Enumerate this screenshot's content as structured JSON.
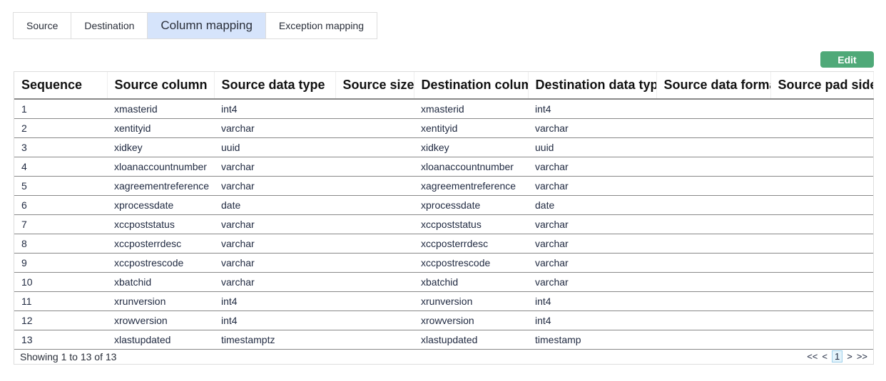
{
  "tabs": [
    "Source",
    "Destination",
    "Column mapping",
    "Exception mapping"
  ],
  "active_tab": "Column mapping",
  "edit_label": "Edit",
  "columns": [
    "Sequence",
    "Source column",
    "Source data type",
    "Source size",
    "Destination column",
    "Destination data type",
    "Source data format",
    "Source pad side"
  ],
  "rows": [
    [
      "1",
      "xmasterid",
      "int4",
      "",
      "xmasterid",
      "int4",
      "",
      ""
    ],
    [
      "2",
      "xentityid",
      "varchar",
      "",
      "xentityid",
      "varchar",
      "",
      ""
    ],
    [
      "3",
      "xidkey",
      "uuid",
      "",
      "xidkey",
      "uuid",
      "",
      ""
    ],
    [
      "4",
      "xloanaccountnumber",
      "varchar",
      "",
      "xloanaccountnumber",
      "varchar",
      "",
      ""
    ],
    [
      "5",
      "xagreementreference",
      "varchar",
      "",
      "xagreementreference",
      "varchar",
      "",
      ""
    ],
    [
      "6",
      "xprocessdate",
      "date",
      "",
      "xprocessdate",
      "date",
      "",
      ""
    ],
    [
      "7",
      "xccpoststatus",
      "varchar",
      "",
      "xccpoststatus",
      "varchar",
      "",
      ""
    ],
    [
      "8",
      "xccposterrdesc",
      "varchar",
      "",
      "xccposterrdesc",
      "varchar",
      "",
      ""
    ],
    [
      "9",
      "xccpostrescode",
      "varchar",
      "",
      "xccpostrescode",
      "varchar",
      "",
      ""
    ],
    [
      "10",
      "xbatchid",
      "varchar",
      "",
      "xbatchid",
      "varchar",
      "",
      ""
    ],
    [
      "11",
      "xrunversion",
      "int4",
      "",
      "xrunversion",
      "int4",
      "",
      ""
    ],
    [
      "12",
      "xrowversion",
      "int4",
      "",
      "xrowversion",
      "int4",
      "",
      ""
    ],
    [
      "13",
      "xlastupdated",
      "timestamptz",
      "",
      "xlastupdated",
      "timestamp",
      "",
      ""
    ]
  ],
  "footer": {
    "showing": "Showing 1 to 13 of 13",
    "first": "<<",
    "prev": "<",
    "page": "1",
    "next": ">",
    "last": ">>"
  }
}
